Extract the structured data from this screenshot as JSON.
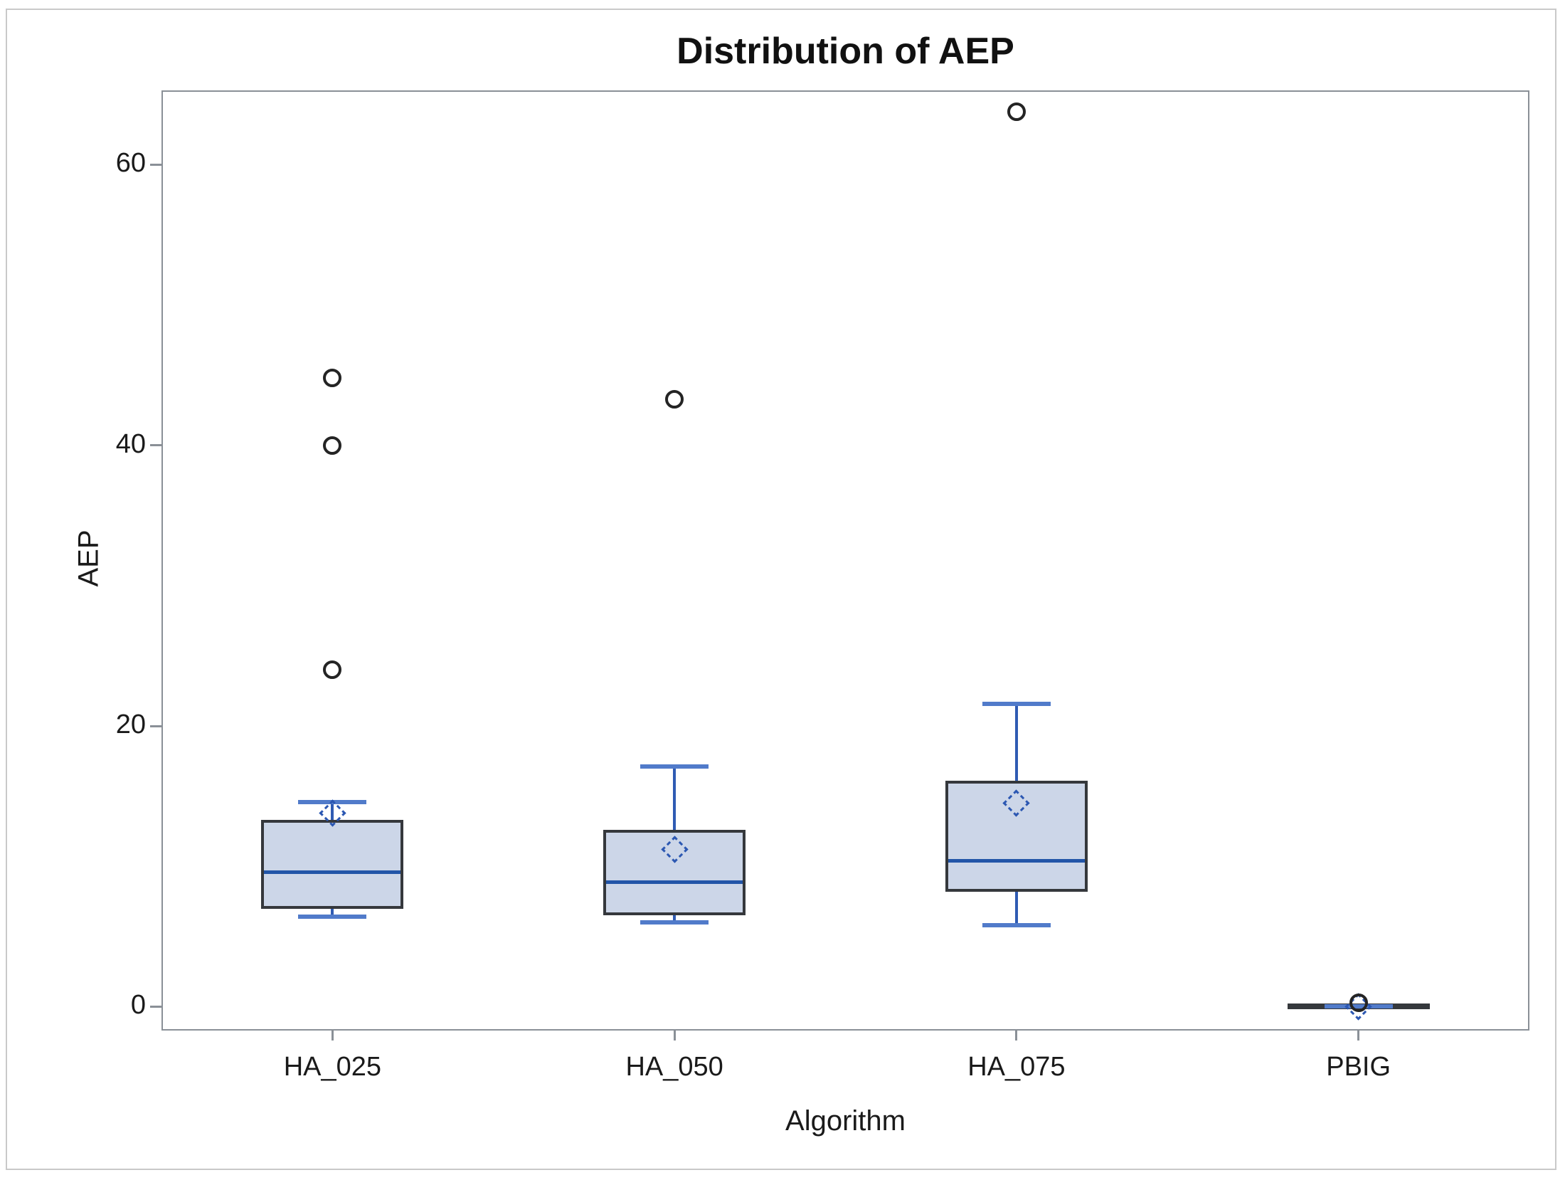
{
  "page": {
    "background": "#ffffff",
    "frame_border_color": "#c9c9c9"
  },
  "chart_data": {
    "type": "box",
    "title": "Distribution of AEP",
    "xlabel": "Algorithm",
    "ylabel": "AEP",
    "categories": [
      "HA_025",
      "HA_050",
      "HA_075",
      "PBIG"
    ],
    "y_ticks": [
      0,
      20,
      40,
      60
    ],
    "ylim": [
      -1.7,
      65.3
    ],
    "grid": false,
    "legend": false,
    "series": [
      {
        "name": "HA_025",
        "whisker_low": 6.4,
        "q1": 7.2,
        "median": 9.6,
        "q3": 13.1,
        "whisker_high": 14.6,
        "mean": 13.8,
        "outliers": [
          24.0,
          40.0,
          44.8
        ]
      },
      {
        "name": "HA_050",
        "whisker_low": 6.0,
        "q1": 6.7,
        "median": 8.9,
        "q3": 12.4,
        "whisker_high": 17.1,
        "mean": 11.2,
        "outliers": [
          43.3
        ]
      },
      {
        "name": "HA_075",
        "whisker_low": 5.8,
        "q1": 8.4,
        "median": 10.4,
        "q3": 15.9,
        "whisker_high": 21.6,
        "mean": 14.5,
        "outliers": [
          63.8
        ]
      },
      {
        "name": "PBIG",
        "whisker_low": 0.0,
        "q1": 0.0,
        "median": 0.0,
        "q3": 0.0,
        "whisker_high": 0.0,
        "mean": 0.0,
        "outliers": [
          0.3
        ]
      }
    ],
    "colors": {
      "box_fill": "#ccd6e8",
      "box_border": "#35383c",
      "median": "#2255a8",
      "whisker": "#2f5bb3",
      "cap": "#517bca",
      "mean_marker": "#2b57b2",
      "outlier": "#242424",
      "axis": "#8a9097",
      "text": "#1a1a1a"
    }
  }
}
